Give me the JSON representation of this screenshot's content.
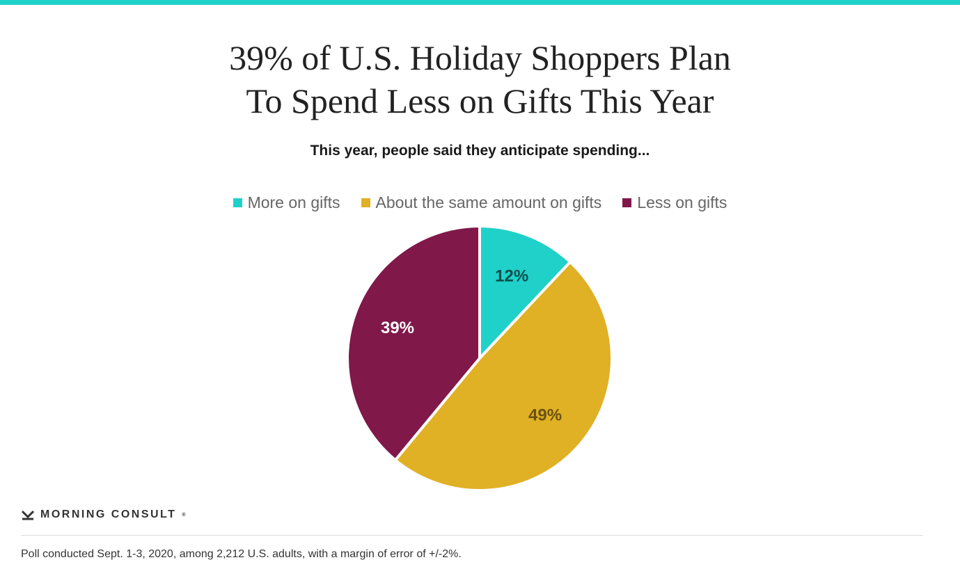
{
  "title_lines": [
    "39% of U.S. Holiday Shoppers Plan",
    "To Spend Less on Gifts This Year"
  ],
  "subtitle": "This year, people said they anticipate spending...",
  "brand": {
    "name": "MORNING CONSULT",
    "mark": "®"
  },
  "footnote": "Poll conducted Sept. 1-3, 2020, among 2,212 U.S. adults, with a margin of error of +/-2%.",
  "accent_color": "#1fd1c9",
  "chart_data": {
    "type": "pie",
    "title": "39% of U.S. Holiday Shoppers Plan To Spend Less on Gifts This Year",
    "subtitle": "This year, people said they anticipate spending...",
    "legend_position": "top",
    "categories": [
      "More on gifts",
      "About the same amount on gifts",
      "Less on gifts"
    ],
    "values": [
      12,
      49,
      39
    ],
    "labels": [
      "12%",
      "49%",
      "39%"
    ],
    "colors": [
      "#1fd1c9",
      "#e0b025",
      "#80184a"
    ],
    "label_colors": [
      "#0c4f4c",
      "#6b5210",
      "#ffffff"
    ]
  }
}
